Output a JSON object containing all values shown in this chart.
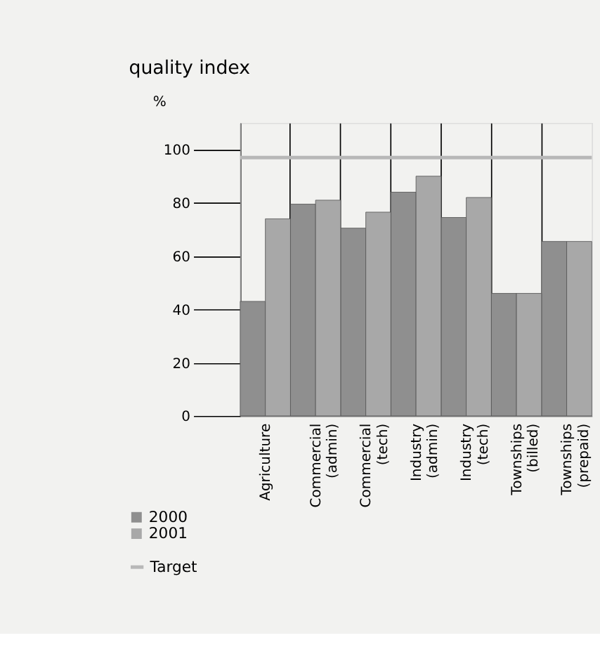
{
  "chart_data": {
    "type": "bar",
    "title": "quality index",
    "ylabel": "%",
    "categories": [
      "Agriculture",
      "Commercial (admin)",
      "Commercial (tech)",
      "Industry (admin)",
      "Industry (tech)",
      "Townships (billed)",
      "Townships (prepaid)"
    ],
    "series": [
      {
        "name": "2000",
        "color": "#8f8f8f",
        "values": [
          43,
          79.5,
          70.5,
          84,
          74.5,
          46,
          65.5
        ]
      },
      {
        "name": "2001",
        "color": "#a8a8a8",
        "values": [
          74,
          81,
          76.5,
          90,
          82,
          46,
          65.5
        ]
      }
    ],
    "ref_lines": [
      {
        "axis": "y",
        "value": 97,
        "label": "Target",
        "color": "#b8b8b8"
      }
    ],
    "ylim": [
      0,
      110
    ],
    "yticks": [
      0,
      20,
      40,
      60,
      80,
      100
    ],
    "grid": "x",
    "legend": "bottom left"
  }
}
